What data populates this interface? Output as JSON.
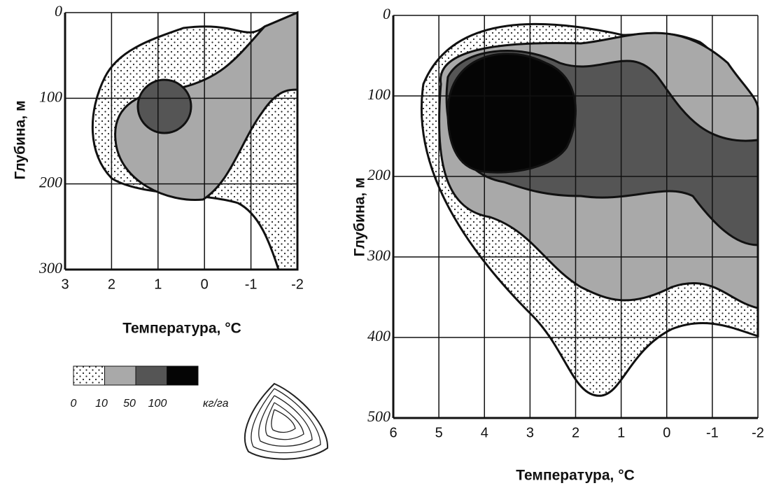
{
  "chart_data": [
    {
      "type": "contour",
      "xlabel": "Температура, °C",
      "ylabel": "Глубина, м",
      "xlim": [
        3,
        -2
      ],
      "xticks": [
        3,
        2,
        1,
        0,
        -1,
        -2
      ],
      "ylim": [
        0,
        300
      ],
      "yticks": [
        0,
        100,
        200,
        300
      ],
      "legend": {
        "levels": [
          0,
          10,
          50,
          100
        ],
        "unit": "кг/га"
      }
    },
    {
      "type": "contour",
      "xlabel": "Температура, °C",
      "ylabel": "Глубина, м",
      "xlim": [
        6,
        -2
      ],
      "xticks": [
        6,
        5,
        4,
        3,
        2,
        1,
        0,
        -1,
        -2
      ],
      "ylim": [
        0,
        500
      ],
      "yticks": [
        0,
        100,
        200,
        300,
        400,
        500
      ]
    }
  ]
}
